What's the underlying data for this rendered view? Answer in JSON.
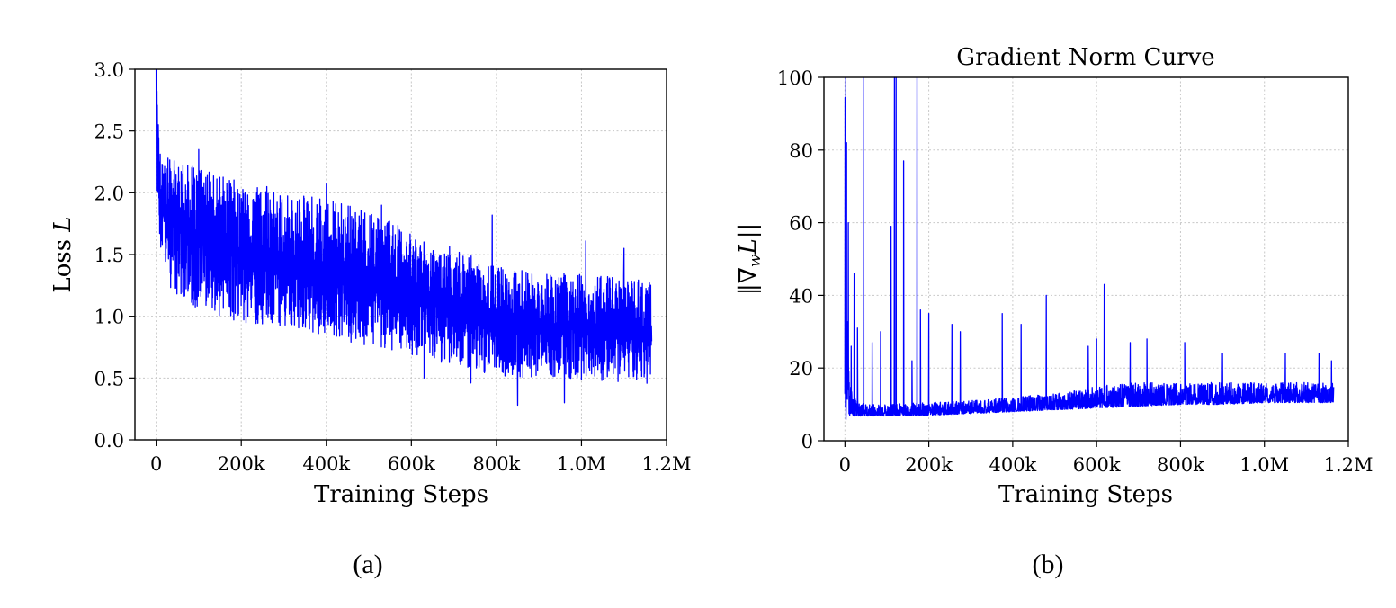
{
  "chart_data": [
    {
      "type": "line",
      "panel_label": "(a)",
      "title": "",
      "xlabel": "Training Steps",
      "ylabel": "Loss L",
      "ylabel_parts": {
        "text": "Loss ",
        "var": "L"
      },
      "xlim": [
        -50000,
        1200000
      ],
      "ylim": [
        0.0,
        3.0
      ],
      "xticks": [
        0,
        200000,
        400000,
        600000,
        800000,
        1000000,
        1200000
      ],
      "xtick_labels": [
        "0",
        "200k",
        "400k",
        "600k",
        "800k",
        "1.0M",
        "1.2M"
      ],
      "yticks": [
        0.0,
        0.5,
        1.0,
        1.5,
        2.0,
        2.5,
        3.0
      ],
      "ytick_labels": [
        "0.0",
        "0.5",
        "1.0",
        "1.5",
        "2.0",
        "2.5",
        "3.0"
      ],
      "grid": true,
      "color": "#0000ff",
      "series": [
        {
          "x": [
            0,
            2000,
            5000,
            10000,
            20000,
            50000,
            100000,
            150000,
            200000,
            300000,
            400000,
            500000,
            600000,
            700000,
            800000,
            900000,
            1000000,
            1100000,
            1165000
          ],
          "y": [
            3.0,
            2.6,
            2.3,
            2.0,
            1.85,
            1.75,
            1.65,
            1.58,
            1.52,
            1.45,
            1.38,
            1.3,
            1.2,
            1.08,
            0.98,
            0.92,
            0.9,
            0.88,
            0.87
          ],
          "band_low": [
            1.8,
            1.6,
            1.5,
            1.4,
            1.3,
            1.15,
            1.05,
            1.0,
            0.95,
            0.9,
            0.82,
            0.75,
            0.68,
            0.6,
            0.52,
            0.48,
            0.48,
            0.47,
            0.45
          ],
          "band_high": [
            3.0,
            2.9,
            2.5,
            2.4,
            2.3,
            2.25,
            2.2,
            2.15,
            2.1,
            2.0,
            1.95,
            1.85,
            1.7,
            1.55,
            1.4,
            1.35,
            1.35,
            1.33,
            1.3
          ],
          "spikes": [
            [
              5000,
              2.55
            ],
            [
              100000,
              2.35
            ],
            [
              260000,
              2.05
            ],
            [
              400000,
              2.07
            ],
            [
              530000,
              1.9
            ],
            [
              790000,
              1.82
            ],
            [
              1010000,
              1.61
            ],
            [
              1100000,
              1.55
            ],
            [
              850000,
              0.28
            ],
            [
              960000,
              0.3
            ],
            [
              630000,
              0.5
            ],
            [
              740000,
              0.46
            ]
          ]
        }
      ]
    },
    {
      "type": "line",
      "panel_label": "(b)",
      "title": "Gradient Norm Curve",
      "xlabel": "Training Steps",
      "ylabel": "||∇wL||",
      "ylabel_parts": {
        "open": "‖∇",
        "sub": "w",
        "var": "L",
        "close": "||"
      },
      "xlim": [
        -50000,
        1200000
      ],
      "ylim": [
        0,
        100
      ],
      "xticks": [
        0,
        200000,
        400000,
        600000,
        800000,
        1000000,
        1200000
      ],
      "xtick_labels": [
        "0",
        "200k",
        "400k",
        "600k",
        "800k",
        "1.0M",
        "1.2M"
      ],
      "yticks": [
        0,
        20,
        40,
        60,
        80,
        100
      ],
      "ytick_labels": [
        "0",
        "20",
        "40",
        "60",
        "80",
        "100"
      ],
      "grid": true,
      "color": "#0000ff",
      "series": [
        {
          "x": [
            0,
            5000,
            10000,
            20000,
            50000,
            100000,
            200000,
            300000,
            400000,
            500000,
            600000,
            700000,
            800000,
            900000,
            1000000,
            1100000,
            1165000
          ],
          "band_low": [
            5,
            6.5,
            6.8,
            6.8,
            6.8,
            6.8,
            7.0,
            7.5,
            8.0,
            8.5,
            9.0,
            9.5,
            10.0,
            10.0,
            10.5,
            10.5,
            10.5
          ],
          "band_high": [
            100,
            40,
            20,
            12,
            10,
            10,
            10.5,
            11,
            12,
            13,
            15,
            16,
            16,
            16,
            16,
            16,
            16
          ],
          "spikes": [
            [
              2000,
              100
            ],
            [
              4000,
              82
            ],
            [
              8000,
              60
            ],
            [
              15000,
              26
            ],
            [
              22000,
              46
            ],
            [
              30000,
              31
            ],
            [
              45000,
              100
            ],
            [
              65000,
              27
            ],
            [
              85000,
              30
            ],
            [
              110000,
              59
            ],
            [
              118000,
              100
            ],
            [
              122000,
              100
            ],
            [
              140000,
              77
            ],
            [
              160000,
              22
            ],
            [
              172000,
              100
            ],
            [
              180000,
              36
            ],
            [
              200000,
              35
            ],
            [
              255000,
              32
            ],
            [
              275000,
              30
            ],
            [
              375000,
              35
            ],
            [
              420000,
              32
            ],
            [
              480000,
              40
            ],
            [
              580000,
              26
            ],
            [
              600000,
              28
            ],
            [
              618000,
              43
            ],
            [
              680000,
              27
            ],
            [
              720000,
              28
            ],
            [
              810000,
              27
            ],
            [
              900000,
              24
            ],
            [
              1050000,
              24
            ],
            [
              1130000,
              24
            ],
            [
              1160000,
              22
            ]
          ]
        }
      ]
    }
  ]
}
